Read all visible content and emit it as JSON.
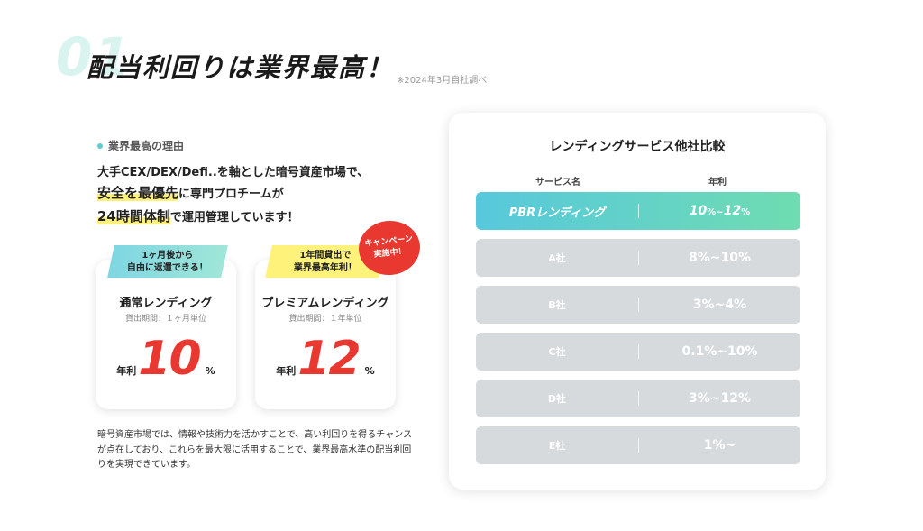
{
  "header": {
    "number": "01",
    "title": "配当利回りは業界最高！",
    "note": "※2024年3月自社調べ"
  },
  "reason": {
    "heading": "業界最高の理由",
    "line1": "大手CEX/DEX/Defi..を軸とした暗号資産市場で、",
    "line2_highlight": "安全を最優先",
    "line2_rest": "に専門プロチームが",
    "line3_highlight": "24時間体制",
    "line3_rest": "で運用管理しています！"
  },
  "plans": [
    {
      "ribbon": "1ヶ月後から\n自由に返還できる！",
      "name": "通常レンディング",
      "period": "貸出期間：１ヶ月単位",
      "rate_prefix": "年利",
      "rate": "10",
      "rate_suffix": "%"
    },
    {
      "ribbon": "1年間貸出で\n業界最高年利！",
      "name": "プレミアムレンディング",
      "period": "貸出期間：１年単位",
      "rate_prefix": "年利",
      "rate": "12",
      "rate_suffix": "%"
    }
  ],
  "campaign_badge": "キャンペーン\n実施中！",
  "description": "暗号資産市場では、情報や技術力を活かすことで、高い利回りを得るチャンスが点在しており、これらを最大限に活用することで、業界最高水準の配当利回りを実現できています。",
  "comparison": {
    "title": "レンディングサービス他社比較",
    "col_service": "サービス名",
    "col_rate": "年利",
    "top": {
      "name": "PBRレンディング",
      "rate_from": "10",
      "rate_to": "12",
      "pct": "%",
      "sep": "~"
    },
    "rows": [
      {
        "name": "A社",
        "rate": "8%~10%"
      },
      {
        "name": "B社",
        "rate": "3%~4%"
      },
      {
        "name": "C社",
        "rate": "0.1%~10%"
      },
      {
        "name": "D社",
        "rate": "3%~12%"
      },
      {
        "name": "E社",
        "rate": "1%~"
      }
    ]
  },
  "colors": {
    "accent_teal": "#5ecbd1",
    "highlight_yellow": "#fff07a",
    "rate_red": "#e8382f",
    "row_gray": "#d6dadd"
  }
}
